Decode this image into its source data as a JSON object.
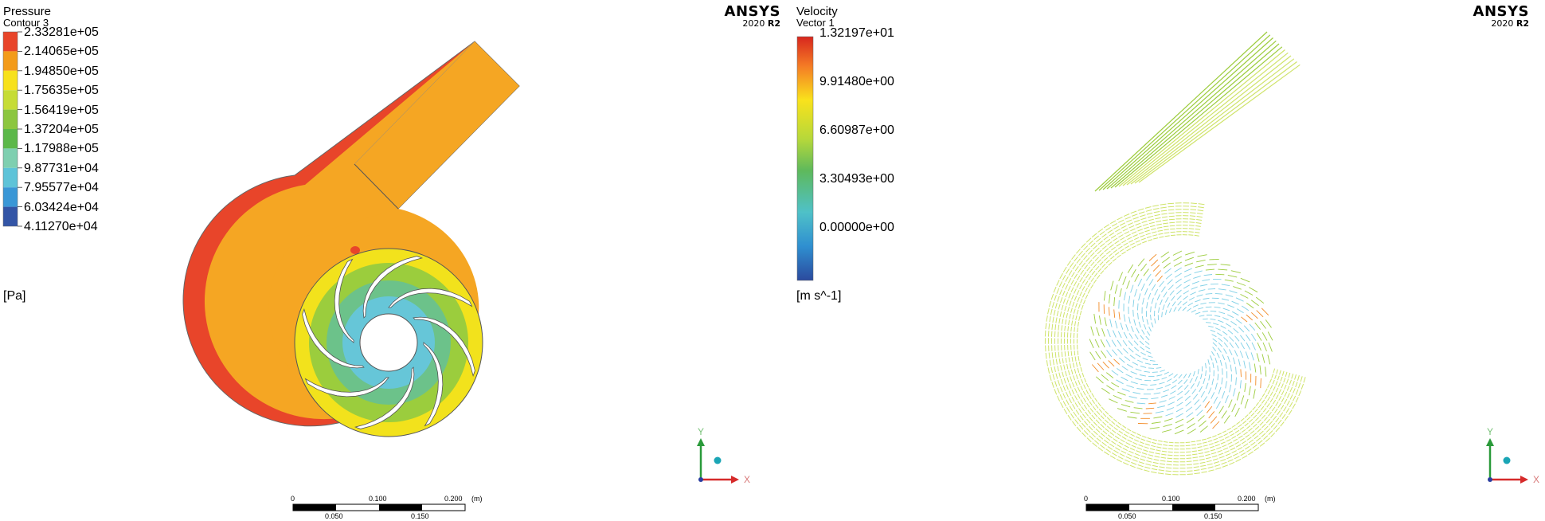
{
  "left": {
    "legend": {
      "title": "Pressure",
      "subtitle": "Contour 3",
      "ticks": [
        "2.33281e+05",
        "2.14065e+05",
        "1.94850e+05",
        "1.75635e+05",
        "1.56419e+05",
        "1.37204e+05",
        "1.17988e+05",
        "9.87731e+04",
        "7.95577e+04",
        "6.03424e+04",
        "4.11270e+04"
      ],
      "unit": "[Pa]",
      "band_colors": [
        "#e8452a",
        "#f39b1a",
        "#f7e11c",
        "#c6dc36",
        "#8cc63f",
        "#5cb84a",
        "#7fcfb0",
        "#5ec3d8",
        "#3a97d6",
        "#3355a6"
      ]
    },
    "brand": {
      "name": "ANSYS",
      "version": "2020",
      "release": "R2"
    },
    "axes": {
      "y": "Y",
      "x": "X"
    },
    "scale": {
      "top": [
        "0",
        "0.100",
        "0.200"
      ],
      "unit": "(m)",
      "bottom": [
        "0.050",
        "0.150"
      ]
    },
    "colors": {
      "volute_outer": "#e8452a",
      "volute": "#f5a623",
      "impeller_edge": "#f7e11c",
      "impeller_mid": "#8cc63f",
      "hub": "#5ec3d8"
    }
  },
  "right": {
    "legend": {
      "title": "Velocity",
      "subtitle": "Vector 1",
      "ticks": [
        "1.32197e+01",
        "9.91480e+00",
        "6.60987e+00",
        "3.30493e+00",
        "0.00000e+00"
      ],
      "unit": "[m s^-1]",
      "gradient": [
        "#d7261e",
        "#f47b25",
        "#f9e21c",
        "#b6d83a",
        "#5eb95c",
        "#4fc1c8",
        "#2f8fd0",
        "#2b4a9e"
      ]
    },
    "brand": {
      "name": "ANSYS",
      "version": "2020",
      "release": "R2"
    },
    "axes": {
      "y": "Y",
      "x": "X"
    },
    "scale": {
      "top": [
        "0",
        "0.100",
        "0.200"
      ],
      "unit": "(m)",
      "bottom": [
        "0.050",
        "0.150"
      ]
    },
    "colors": {
      "vectors": "#9ccc3c",
      "vectors_light": "#cfe36a",
      "impeller_vec": "#7fd0e6",
      "hot": "#f28c28"
    }
  }
}
